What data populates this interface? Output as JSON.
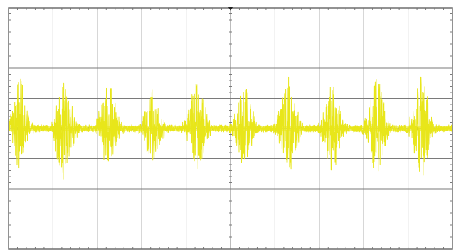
{
  "chart_data": {
    "type": "line",
    "title": "",
    "xlabel": "",
    "ylabel": "",
    "xlim": [
      0,
      10
    ],
    "ylim": [
      -4,
      4
    ],
    "grid": true,
    "grid_divisions": {
      "x": 10,
      "y": 8
    },
    "background": "#ffffff",
    "grid_color": "#7a7a7a",
    "border_color": "#6e6e6e",
    "marker_color": "#222222",
    "series": [
      {
        "color": "#e8e61a",
        "baseline": 0,
        "baseline_noise_amplitude": 0.12,
        "bursts": [
          {
            "center": 0.25,
            "width": 0.45,
            "peak_positive": 1.8,
            "peak_negative": -1.3
          },
          {
            "center": 1.25,
            "width": 0.5,
            "peak_positive": 1.5,
            "peak_negative": -1.8
          },
          {
            "center": 2.25,
            "width": 0.5,
            "peak_positive": 1.6,
            "peak_negative": -1.3
          },
          {
            "center": 3.25,
            "width": 0.5,
            "peak_positive": 1.2,
            "peak_negative": -1.1
          },
          {
            "center": 4.25,
            "width": 0.5,
            "peak_positive": 1.6,
            "peak_negative": -1.3
          },
          {
            "center": 5.3,
            "width": 0.5,
            "peak_positive": 1.5,
            "peak_negative": -1.2
          },
          {
            "center": 6.3,
            "width": 0.5,
            "peak_positive": 1.6,
            "peak_negative": -1.5
          },
          {
            "center": 7.3,
            "width": 0.5,
            "peak_positive": 1.4,
            "peak_negative": -1.4
          },
          {
            "center": 8.3,
            "width": 0.5,
            "peak_positive": 1.6,
            "peak_negative": -1.5
          },
          {
            "center": 9.3,
            "width": 0.5,
            "peak_positive": 1.8,
            "peak_negative": -1.6
          }
        ]
      }
    ]
  }
}
